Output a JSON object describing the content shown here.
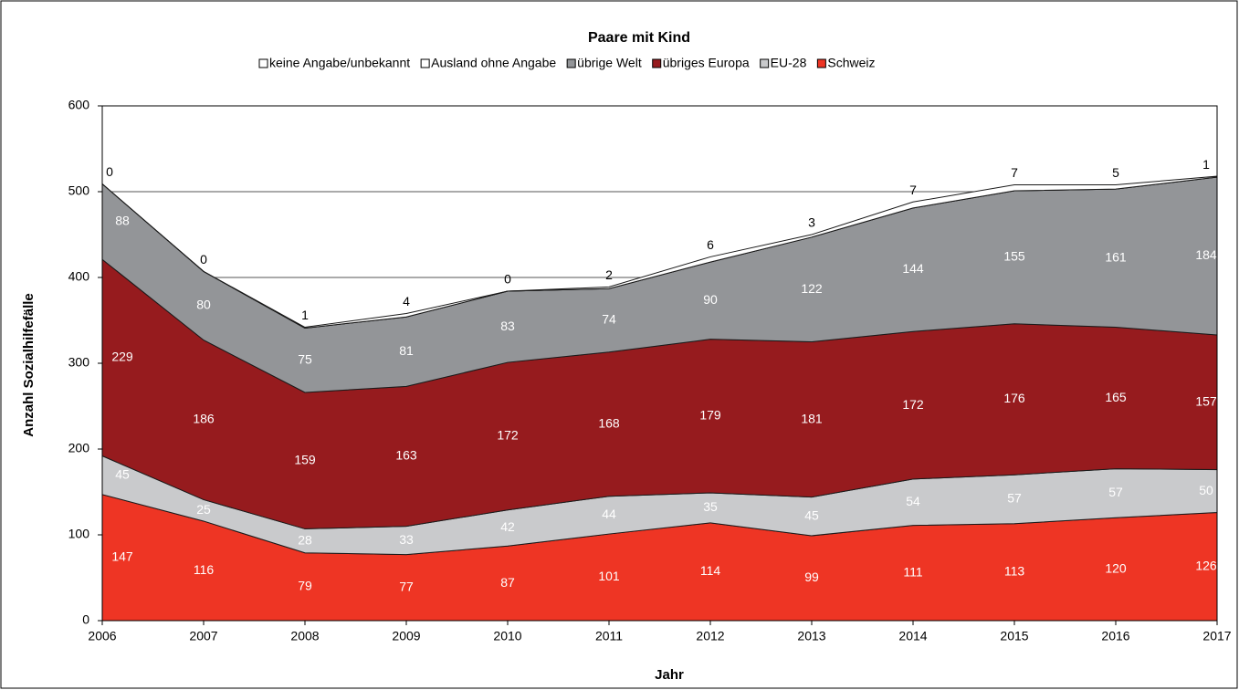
{
  "chart_data": {
    "type": "stacked_area",
    "title": "Paare mit Kind",
    "x_label": "Jahr",
    "y_label": "Anzahl Sozialhilfefälle",
    "categories": [
      "2006",
      "2007",
      "2008",
      "2009",
      "2010",
      "2011",
      "2012",
      "2013",
      "2014",
      "2015",
      "2016",
      "2017"
    ],
    "ylim": [
      0,
      600
    ],
    "yticks": [
      0,
      100,
      200,
      300,
      400,
      500,
      600
    ],
    "grid": true,
    "legend": "top",
    "series": [
      {
        "name": "Schweiz",
        "color": "#ee3524",
        "values": [
          147,
          116,
          79,
          77,
          87,
          101,
          114,
          99,
          111,
          113,
          120,
          126
        ]
      },
      {
        "name": "EU-28",
        "color": "#c9cacc",
        "values": [
          45,
          25,
          28,
          33,
          42,
          44,
          35,
          45,
          54,
          57,
          57,
          50
        ]
      },
      {
        "name": "übriges Europa",
        "color": "#961b1e",
        "values": [
          229,
          186,
          159,
          163,
          172,
          168,
          179,
          181,
          172,
          176,
          165,
          157
        ]
      },
      {
        "name": "übrige Welt",
        "color": "#939598",
        "values": [
          88,
          80,
          75,
          81,
          83,
          74,
          90,
          122,
          144,
          155,
          161,
          184
        ]
      },
      {
        "name": "Ausland ohne Angabe",
        "color": "#ffffff",
        "values": [
          0,
          0,
          0,
          0,
          0,
          0,
          0,
          0,
          0,
          0,
          0,
          0
        ]
      },
      {
        "name": "keine Angabe/unbekannt",
        "color": "#ffffff",
        "values": [
          0,
          0,
          1,
          4,
          0,
          2,
          6,
          3,
          7,
          7,
          5,
          1
        ]
      }
    ]
  }
}
